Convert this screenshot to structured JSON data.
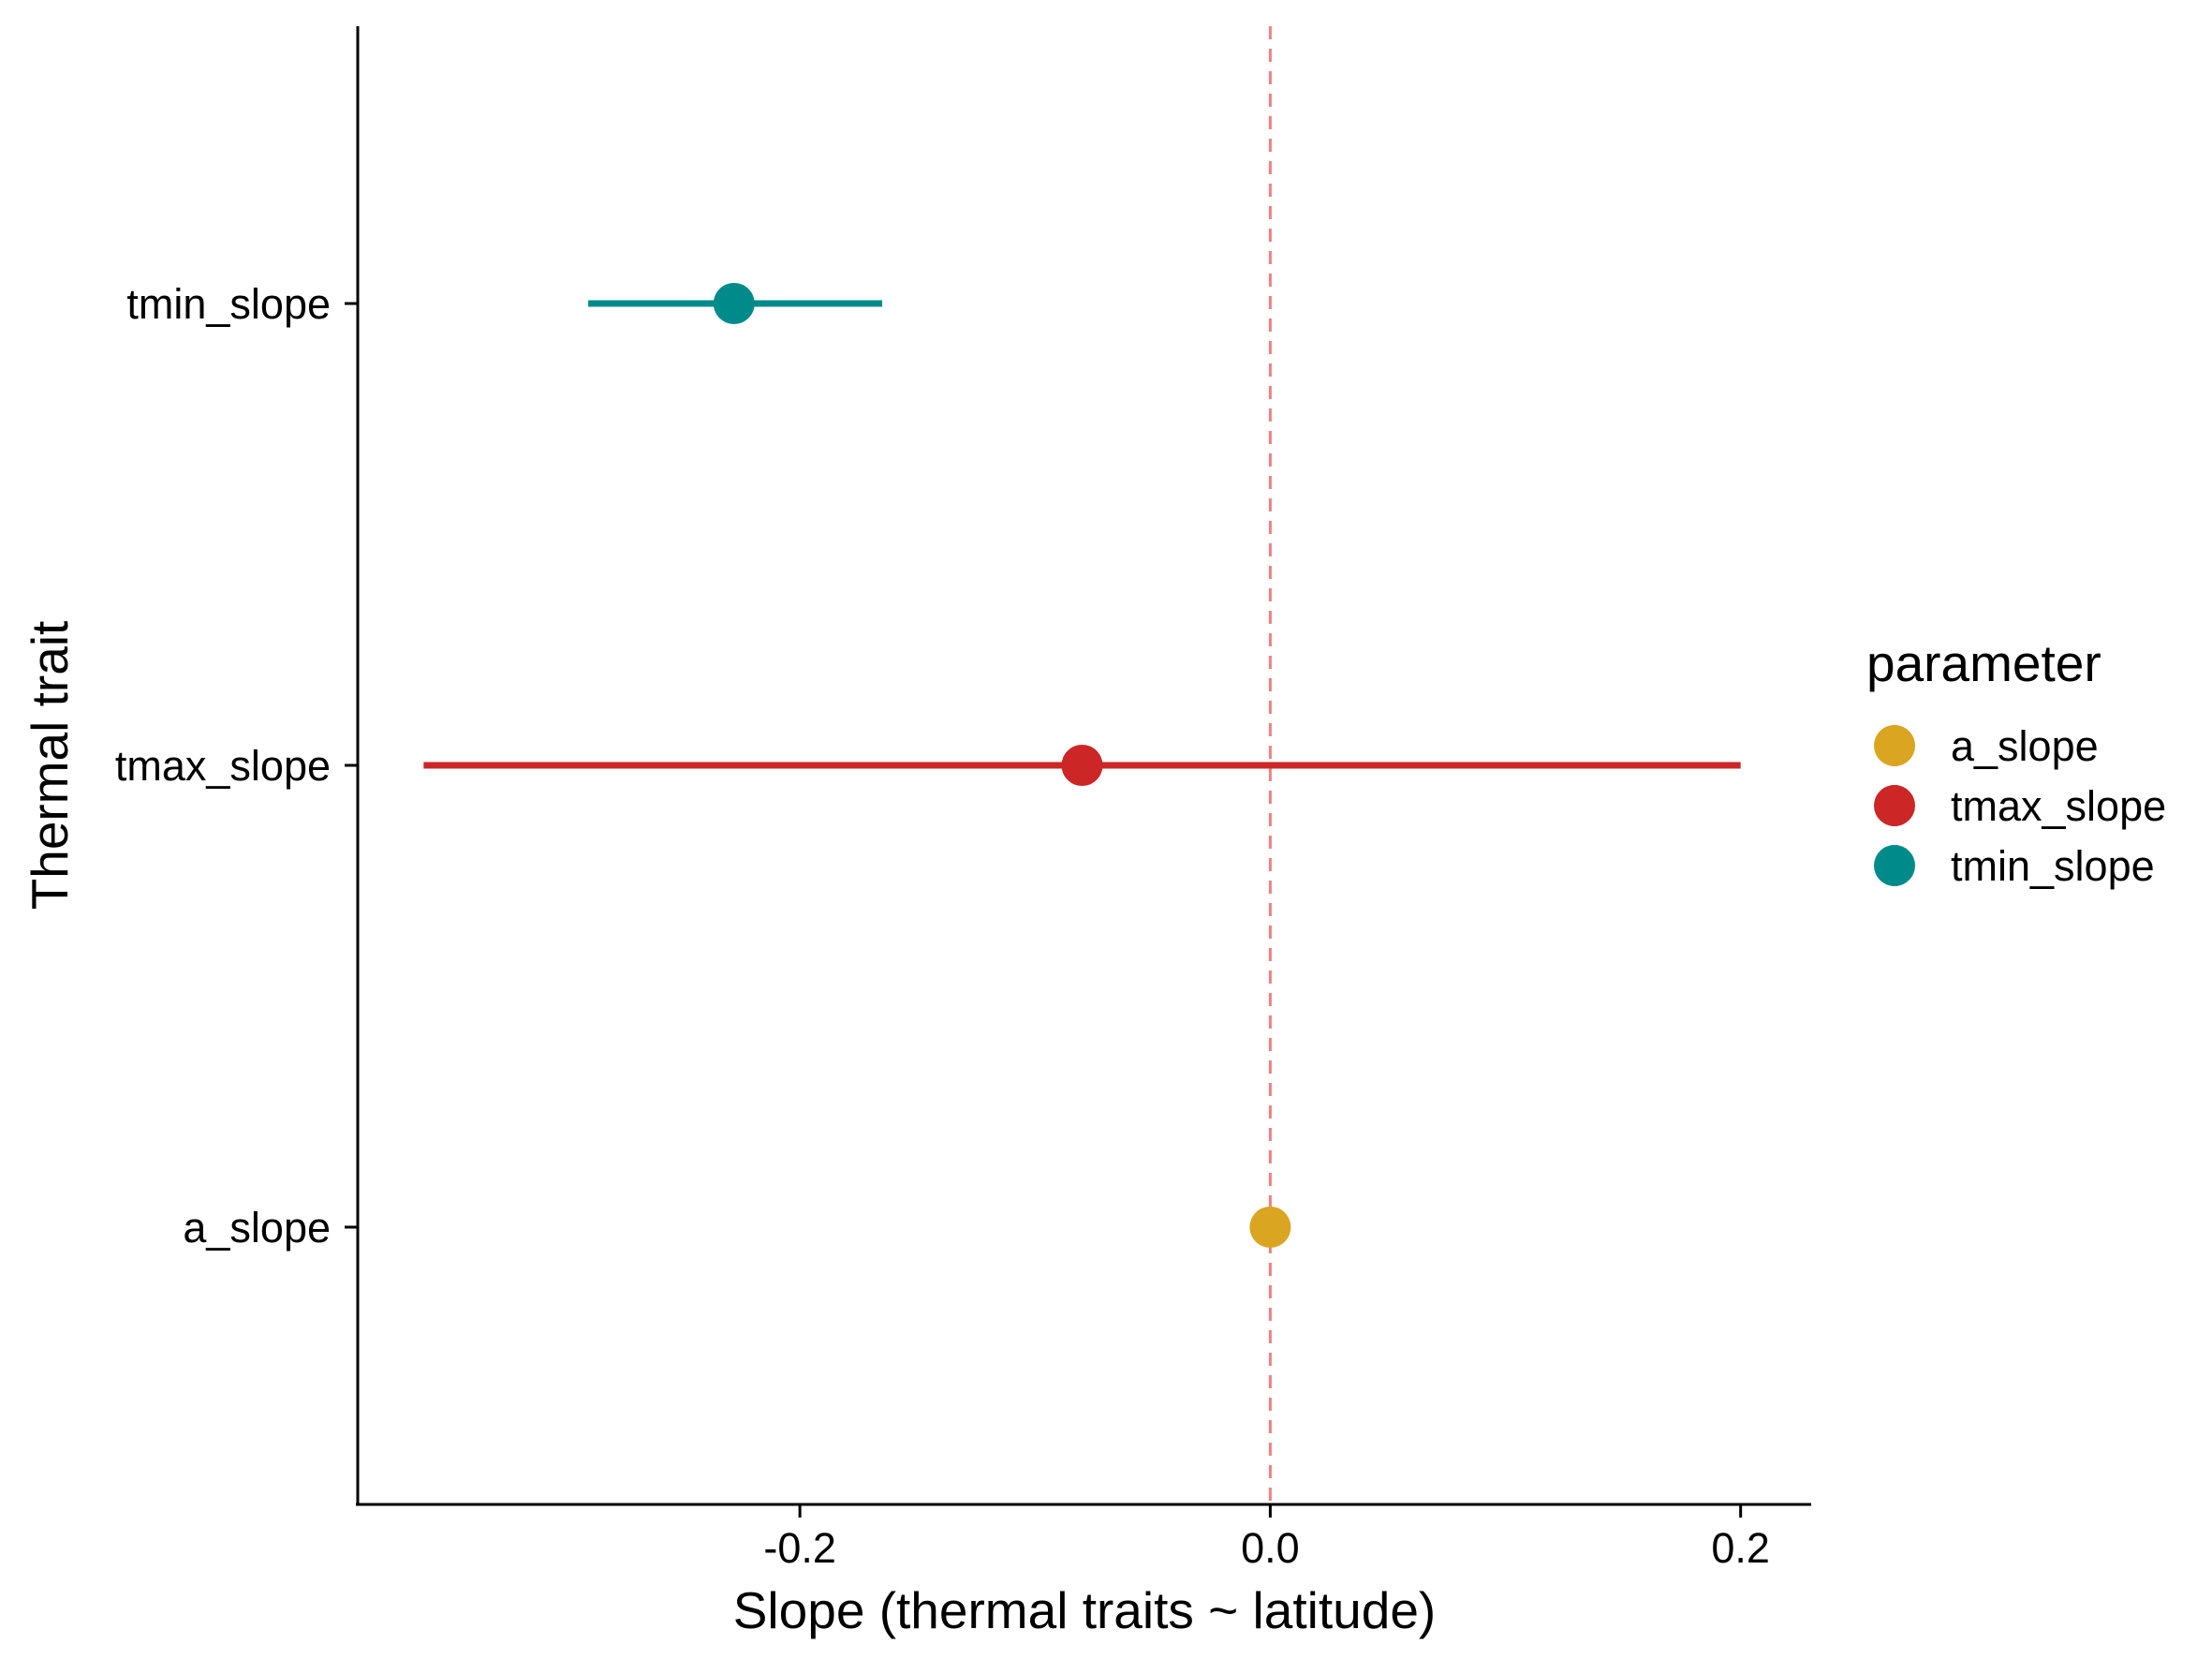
{
  "chart_data": {
    "type": "scatter",
    "title": "",
    "xlabel": "Slope (thermal traits ~ latitude)",
    "ylabel": "Thermal trait",
    "xlim": [
      -0.388,
      0.23
    ],
    "x_ticks": [
      -0.2,
      0.0,
      0.2
    ],
    "x_tick_labels": [
      "-0.2",
      "0.0",
      "0.2"
    ],
    "categories": [
      "tmin_slope",
      "tmax_slope",
      "a_slope"
    ],
    "reference_line": {
      "x": 0.0,
      "style": "dashed",
      "color": "#F08080"
    },
    "grid": false,
    "legend": {
      "title": "parameter",
      "position": "right",
      "entries": [
        "a_slope",
        "tmax_slope",
        "tmin_slope"
      ]
    },
    "series": [
      {
        "name": "a_slope",
        "category": "a_slope",
        "x": 0.0,
        "xmin": 0.0,
        "xmax": 0.0,
        "color": "#DAA520"
      },
      {
        "name": "tmax_slope",
        "category": "tmax_slope",
        "x": -0.08,
        "xmin": -0.36,
        "xmax": 0.2,
        "color": "#CD2626"
      },
      {
        "name": "tmin_slope",
        "category": "tmin_slope",
        "x": -0.228,
        "xmin": -0.29,
        "xmax": -0.165,
        "color": "#008B8B"
      }
    ]
  }
}
